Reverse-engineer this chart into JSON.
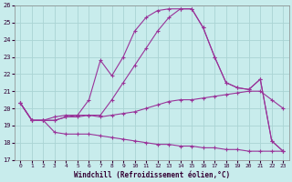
{
  "xlabel": "Windchill (Refroidissement éolien,°C)",
  "xlim": [
    -0.5,
    23.5
  ],
  "ylim": [
    17,
    26
  ],
  "yticks": [
    17,
    18,
    19,
    20,
    21,
    22,
    23,
    24,
    25,
    26
  ],
  "xticks": [
    0,
    1,
    2,
    3,
    4,
    5,
    6,
    7,
    8,
    9,
    10,
    11,
    12,
    13,
    14,
    15,
    16,
    17,
    18,
    19,
    20,
    21,
    22,
    23
  ],
  "background_color": "#c8ecec",
  "grid_color": "#aad4d4",
  "line_color": "#993399",
  "s1_y": [
    20.3,
    19.3,
    19.3,
    18.6,
    18.5,
    18.5,
    18.5,
    18.4,
    18.3,
    18.2,
    18.1,
    18.0,
    17.9,
    17.9,
    17.8,
    17.8,
    17.7,
    17.7,
    17.6,
    17.6,
    17.5,
    17.5,
    17.5,
    17.5
  ],
  "s2_y": [
    20.3,
    19.3,
    19.3,
    19.5,
    19.6,
    19.6,
    19.6,
    19.5,
    19.6,
    19.7,
    19.8,
    20.0,
    20.2,
    20.4,
    20.5,
    20.5,
    20.6,
    20.7,
    20.8,
    20.9,
    21.0,
    21.0,
    20.5,
    20.0
  ],
  "s3_y": [
    20.3,
    19.3,
    19.3,
    19.3,
    19.5,
    19.5,
    19.6,
    19.6,
    20.5,
    21.5,
    22.5,
    23.5,
    24.5,
    25.3,
    25.8,
    25.8,
    24.7,
    23.0,
    21.5,
    21.2,
    21.1,
    21.7,
    18.1,
    17.5
  ],
  "s4_y": [
    20.3,
    19.3,
    19.3,
    19.3,
    19.5,
    19.6,
    20.5,
    22.8,
    21.9,
    23.0,
    24.5,
    25.3,
    25.7,
    25.8,
    25.8,
    25.8,
    24.7,
    23.0,
    21.5,
    21.2,
    21.1,
    21.7,
    18.1,
    17.5
  ]
}
